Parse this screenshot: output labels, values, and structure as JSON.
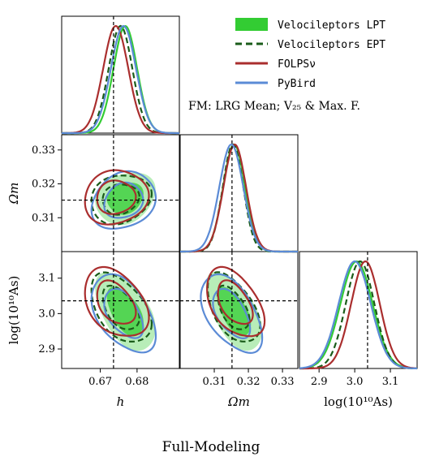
{
  "chart_data": {
    "type": "corner",
    "title": "Full-Modeling",
    "annotation": "FM: LRG Mean; V₂₅ & Max. F.",
    "parameters": [
      {
        "key": "h",
        "label": "h",
        "range": [
          0.6595,
          0.6915
        ],
        "ticks": [
          0.67,
          0.68
        ],
        "tick_labels": [
          "0.67",
          "0.68"
        ],
        "truth": 0.6736
      },
      {
        "key": "Om",
        "label": "Ωm",
        "range": [
          0.3,
          0.3345
        ],
        "ticks": [
          0.31,
          0.32,
          0.33
        ],
        "tick_labels": [
          "0.31",
          "0.32",
          "0.33"
        ],
        "truth": 0.3152
      },
      {
        "key": "logAs",
        "label": "log(10¹⁰As)",
        "range": [
          2.845,
          3.175
        ],
        "ticks": [
          2.9,
          3.0,
          3.1
        ],
        "tick_labels": [
          "2.9",
          "3.0",
          "3.1"
        ],
        "truth": 3.036
      }
    ],
    "legend": {
      "placement": "top-right",
      "entries": [
        "Velocileptors LPT",
        "Velocileptors EPT",
        "FOLPSν",
        "PyBird"
      ]
    },
    "series": [
      {
        "name": "Velocileptors LPT",
        "color": "#33cc33",
        "style": "filled",
        "mean": {
          "h": 0.6768,
          "Om": 0.3158,
          "logAs": 3.005
        },
        "sigma": {
          "h": 0.0032,
          "Om": 0.0032,
          "logAs": 0.045
        },
        "corr": {
          "h_Om": 0.2,
          "h_logAs": -0.5,
          "Om_logAs": -0.55
        }
      },
      {
        "name": "Velocileptors EPT",
        "color": "#1a5c1a",
        "style": "dashed",
        "mean": {
          "h": 0.6755,
          "Om": 0.3155,
          "logAs": 3.015
        },
        "sigma": {
          "h": 0.0032,
          "Om": 0.003,
          "logAs": 0.04
        },
        "corr": {
          "h_Om": 0.15,
          "h_logAs": -0.45,
          "Om_logAs": -0.5
        }
      },
      {
        "name": "FOLPSν",
        "color": "#aa2e2e",
        "style": "line",
        "mean": {
          "h": 0.6742,
          "Om": 0.316,
          "logAs": 3.03
        },
        "sigma": {
          "h": 0.0034,
          "Om": 0.0033,
          "logAs": 0.04
        },
        "corr": {
          "h_Om": 0.1,
          "h_logAs": -0.35,
          "Om_logAs": -0.45
        }
      },
      {
        "name": "PyBird",
        "color": "#5b8bd6",
        "style": "line",
        "mean": {
          "h": 0.6763,
          "Om": 0.315,
          "logAs": 3.0
        },
        "sigma": {
          "h": 0.0034,
          "Om": 0.0035,
          "logAs": 0.045
        },
        "corr": {
          "h_Om": 0.2,
          "h_logAs": -0.45,
          "Om_logAs": -0.5
        }
      }
    ]
  }
}
